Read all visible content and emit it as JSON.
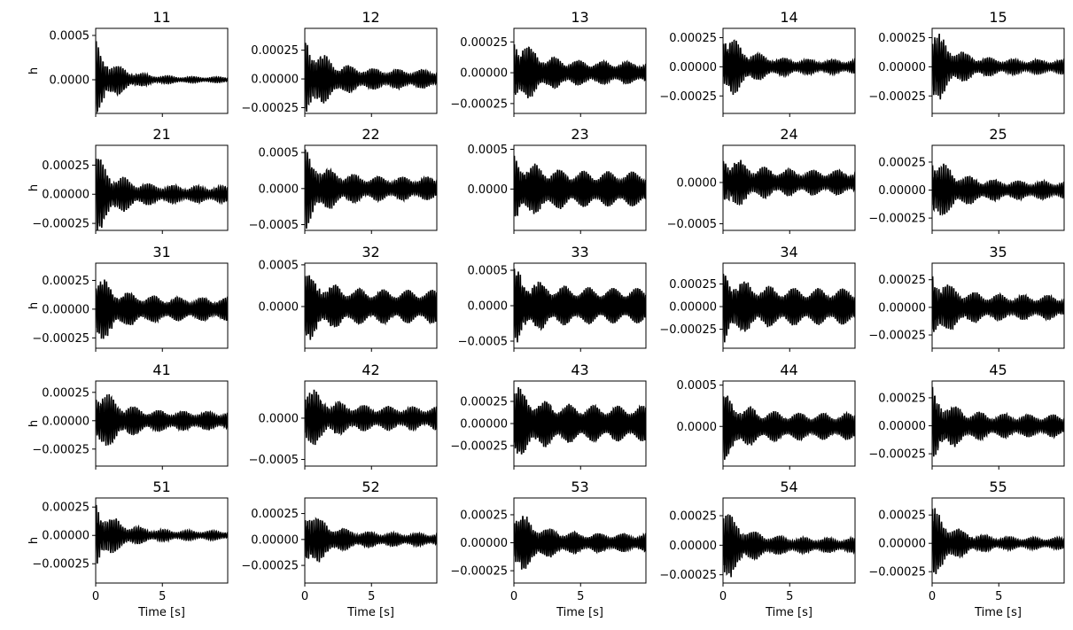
{
  "figure": {
    "background": "#ffffff",
    "line_color": "#000000",
    "x_label": "Time [s]",
    "y_label": "h"
  },
  "chart_data": [
    {
      "title": "11",
      "type": "line",
      "xlabel": "",
      "ylabel": "h",
      "xlim": [
        0,
        9.9
      ],
      "ylim": [
        -0.00038,
        0.00058
      ],
      "yticks": [
        {
          "v": 0.0005,
          "label": "0.0005"
        },
        {
          "v": 0.0,
          "label": "0.0000"
        }
      ],
      "xticks": [
        0,
        5
      ],
      "series": [
        {
          "color": "#000000",
          "amp0": 0.0004,
          "amp_end": 3e-05,
          "offset": 0.0,
          "freq": 6.0
        }
      ]
    },
    {
      "title": "12",
      "type": "line",
      "xlabel": "",
      "ylabel": "",
      "xlim": [
        0,
        9.9
      ],
      "ylim": [
        -0.0003,
        0.00044
      ],
      "yticks": [
        {
          "v": 0.00025,
          "label": "0.00025"
        },
        {
          "v": 0.0,
          "label": "0.00000"
        },
        {
          "v": -0.00025,
          "label": "−0.00025"
        }
      ],
      "xticks": [
        0,
        5
      ],
      "series": [
        {
          "color": "#000000",
          "amp0": 0.00038,
          "amp_end": 8e-05,
          "offset": 0.0,
          "freq": 6.2
        }
      ]
    },
    {
      "title": "13",
      "type": "line",
      "xlabel": "",
      "ylabel": "",
      "xlim": [
        0,
        9.9
      ],
      "ylim": [
        -0.00033,
        0.00036
      ],
      "yticks": [
        {
          "v": 0.00025,
          "label": "0.00025"
        },
        {
          "v": 0.0,
          "label": "0.00000"
        },
        {
          "v": -0.00025,
          "label": "−0.00025"
        }
      ],
      "xticks": [
        0,
        5
      ],
      "series": [
        {
          "color": "#000000",
          "amp0": 0.00032,
          "amp_end": 9e-05,
          "offset": 0.0,
          "freq": 6.4
        }
      ]
    },
    {
      "title": "14",
      "type": "line",
      "xlabel": "",
      "ylabel": "",
      "xlim": [
        0,
        9.9
      ],
      "ylim": [
        -0.0004,
        0.00033
      ],
      "yticks": [
        {
          "v": 0.00025,
          "label": "0.00025"
        },
        {
          "v": 0.0,
          "label": "0.00000"
        },
        {
          "v": -0.00025,
          "label": "−0.00025"
        }
      ],
      "xticks": [
        0,
        5
      ],
      "series": [
        {
          "color": "#000000",
          "amp0": 0.00034,
          "amp_end": 6e-05,
          "offset": 0.0,
          "freq": 6.3
        }
      ]
    },
    {
      "title": "15",
      "type": "line",
      "xlabel": "",
      "ylabel": "",
      "xlim": [
        0,
        9.9
      ],
      "ylim": [
        -0.0004,
        0.00033
      ],
      "yticks": [
        {
          "v": 0.00025,
          "label": "0.00025"
        },
        {
          "v": 0.0,
          "label": "0.00000"
        },
        {
          "v": -0.00025,
          "label": "−0.00025"
        }
      ],
      "xticks": [
        0,
        5
      ],
      "series": [
        {
          "color": "#000000",
          "amp0": 0.00034,
          "amp_end": 6e-05,
          "offset": 0.0,
          "freq": 6.1
        }
      ]
    },
    {
      "title": "21",
      "type": "line",
      "xlabel": "",
      "ylabel": "h",
      "xlim": [
        0,
        9.9
      ],
      "ylim": [
        -0.00031,
        0.00042
      ],
      "yticks": [
        {
          "v": 0.00025,
          "label": "0.00025"
        },
        {
          "v": 0.0,
          "label": "0.00000"
        },
        {
          "v": -0.00025,
          "label": "−0.00025"
        }
      ],
      "xticks": [
        0,
        5
      ],
      "series": [
        {
          "color": "#000000",
          "amp0": 0.00034,
          "amp_end": 7e-05,
          "offset": 0.0,
          "freq": 6.0
        }
      ]
    },
    {
      "title": "22",
      "type": "line",
      "xlabel": "",
      "ylabel": "",
      "xlim": [
        0,
        9.9
      ],
      "ylim": [
        -0.00058,
        0.0006
      ],
      "yticks": [
        {
          "v": 0.0005,
          "label": "0.0005"
        },
        {
          "v": 0.0,
          "label": "0.0000"
        },
        {
          "v": -0.0005,
          "label": "−0.0005"
        }
      ],
      "xticks": [
        0,
        5
      ],
      "series": [
        {
          "color": "#000000",
          "amp0": 0.00052,
          "amp_end": 0.00016,
          "offset": 0.0,
          "freq": 6.3
        }
      ]
    },
    {
      "title": "23",
      "type": "line",
      "xlabel": "",
      "ylabel": "",
      "xlim": [
        0,
        9.9
      ],
      "ylim": [
        -0.00052,
        0.00055
      ],
      "yticks": [
        {
          "v": 0.0005,
          "label": "0.0005"
        },
        {
          "v": 0.0,
          "label": "0.0000"
        }
      ],
      "xticks": [
        0,
        5
      ],
      "series": [
        {
          "color": "#000000",
          "amp0": 0.00042,
          "amp_end": 0.00022,
          "offset": 0.0,
          "freq": 6.5
        }
      ]
    },
    {
      "title": "24",
      "type": "line",
      "xlabel": "",
      "ylabel": "",
      "xlim": [
        0,
        9.9
      ],
      "ylim": [
        -0.00058,
        0.00045
      ],
      "yticks": [
        {
          "v": 0.0,
          "label": "0.0000"
        },
        {
          "v": -0.0005,
          "label": "−0.0005"
        }
      ],
      "xticks": [
        0,
        5
      ],
      "series": [
        {
          "color": "#000000",
          "amp0": 0.0004,
          "amp_end": 0.00015,
          "offset": 0.0,
          "freq": 6.2
        }
      ]
    },
    {
      "title": "25",
      "type": "line",
      "xlabel": "",
      "ylabel": "",
      "xlim": [
        0,
        9.9
      ],
      "ylim": [
        -0.00036,
        0.0004
      ],
      "yticks": [
        {
          "v": 0.00025,
          "label": "0.00025"
        },
        {
          "v": 0.0,
          "label": "0.00000"
        },
        {
          "v": -0.00025,
          "label": "−0.00025"
        }
      ],
      "xticks": [
        0,
        5
      ],
      "series": [
        {
          "color": "#000000",
          "amp0": 0.00034,
          "amp_end": 8e-05,
          "offset": 0.0,
          "freq": 6.1
        }
      ]
    },
    {
      "title": "31",
      "type": "line",
      "xlabel": "",
      "ylabel": "h",
      "xlim": [
        0,
        9.9
      ],
      "ylim": [
        -0.00034,
        0.0004
      ],
      "yticks": [
        {
          "v": 0.00025,
          "label": "0.00025"
        },
        {
          "v": 0.0,
          "label": "0.00000"
        },
        {
          "v": -0.00025,
          "label": "−0.00025"
        }
      ],
      "xticks": [
        0,
        5
      ],
      "series": [
        {
          "color": "#000000",
          "amp0": 0.00032,
          "amp_end": 0.0001,
          "offset": 0.0,
          "freq": 6.4
        }
      ]
    },
    {
      "title": "32",
      "type": "line",
      "xlabel": "",
      "ylabel": "",
      "xlim": [
        0,
        9.9
      ],
      "ylim": [
        -0.0005,
        0.00052
      ],
      "yticks": [
        {
          "v": 0.0005,
          "label": "0.0005"
        },
        {
          "v": 0.0,
          "label": "0.0000"
        }
      ],
      "xticks": [
        0,
        5
      ],
      "series": [
        {
          "color": "#000000",
          "amp0": 0.0004,
          "amp_end": 0.0002,
          "offset": 0.0,
          "freq": 6.6
        }
      ]
    },
    {
      "title": "33",
      "type": "line",
      "xlabel": "",
      "ylabel": "",
      "xlim": [
        0,
        9.9
      ],
      "ylim": [
        -0.0006,
        0.0006
      ],
      "yticks": [
        {
          "v": 0.0005,
          "label": "0.0005"
        },
        {
          "v": 0.0,
          "label": "0.0000"
        },
        {
          "v": -0.0005,
          "label": "−0.0005"
        }
      ],
      "xticks": [
        0,
        5
      ],
      "series": [
        {
          "color": "#000000",
          "amp0": 0.0005,
          "amp_end": 0.00025,
          "offset": 0.0,
          "freq": 6.7
        }
      ]
    },
    {
      "title": "34",
      "type": "line",
      "xlabel": "",
      "ylabel": "",
      "xlim": [
        0,
        9.9
      ],
      "ylim": [
        -0.00046,
        0.00048
      ],
      "yticks": [
        {
          "v": 0.00025,
          "label": "0.00025"
        },
        {
          "v": 0.0,
          "label": "0.00000"
        },
        {
          "v": -0.00025,
          "label": "−0.00025"
        }
      ],
      "xticks": [
        0,
        5
      ],
      "series": [
        {
          "color": "#000000",
          "amp0": 0.0004,
          "amp_end": 0.0002,
          "offset": 0.0,
          "freq": 6.5
        }
      ]
    },
    {
      "title": "35",
      "type": "line",
      "xlabel": "",
      "ylabel": "",
      "xlim": [
        0,
        9.9
      ],
      "ylim": [
        -0.00037,
        0.0004
      ],
      "yticks": [
        {
          "v": 0.00025,
          "label": "0.00025"
        },
        {
          "v": 0.0,
          "label": "0.00000"
        },
        {
          "v": -0.00025,
          "label": "−0.00025"
        }
      ],
      "xticks": [
        0,
        5
      ],
      "series": [
        {
          "color": "#000000",
          "amp0": 0.00032,
          "amp_end": 0.00011,
          "offset": 0.0,
          "freq": 6.3
        }
      ]
    },
    {
      "title": "41",
      "type": "line",
      "xlabel": "",
      "ylabel": "h",
      "xlim": [
        0,
        9.9
      ],
      "ylim": [
        -0.0004,
        0.00035
      ],
      "yticks": [
        {
          "v": 0.00025,
          "label": "0.00025"
        },
        {
          "v": 0.0,
          "label": "0.00000"
        },
        {
          "v": -0.00025,
          "label": "−0.00025"
        }
      ],
      "xticks": [
        0,
        5
      ],
      "series": [
        {
          "color": "#000000",
          "amp0": 0.00034,
          "amp_end": 8e-05,
          "offset": 0.0,
          "freq": 6.2
        }
      ]
    },
    {
      "title": "42",
      "type": "line",
      "xlabel": "",
      "ylabel": "",
      "xlim": [
        0,
        9.9
      ],
      "ylim": [
        -0.00058,
        0.00045
      ],
      "yticks": [
        {
          "v": 0.0,
          "label": "0.0000"
        },
        {
          "v": -0.0005,
          "label": "−0.0005"
        }
      ],
      "xticks": [
        0,
        5
      ],
      "series": [
        {
          "color": "#000000",
          "amp0": 0.00042,
          "amp_end": 0.00014,
          "offset": 0.0,
          "freq": 6.1
        }
      ]
    },
    {
      "title": "43",
      "type": "line",
      "xlabel": "",
      "ylabel": "",
      "xlim": [
        0,
        9.9
      ],
      "ylim": [
        -0.00048,
        0.00048
      ],
      "yticks": [
        {
          "v": 0.00025,
          "label": "0.00025"
        },
        {
          "v": 0.0,
          "label": "0.00000"
        },
        {
          "v": -0.00025,
          "label": "−0.00025"
        }
      ],
      "xticks": [
        0,
        5
      ],
      "series": [
        {
          "color": "#000000",
          "amp0": 0.00042,
          "amp_end": 0.0002,
          "offset": 0.0,
          "freq": 6.6
        }
      ]
    },
    {
      "title": "44",
      "type": "line",
      "xlabel": "",
      "ylabel": "",
      "xlim": [
        0,
        9.9
      ],
      "ylim": [
        -0.00048,
        0.00055
      ],
      "yticks": [
        {
          "v": 0.0005,
          "label": "0.0005"
        },
        {
          "v": 0.0,
          "label": "0.0000"
        }
      ],
      "xticks": [
        0,
        5
      ],
      "series": [
        {
          "color": "#000000",
          "amp0": 0.0004,
          "amp_end": 0.00016,
          "offset": 0.0,
          "freq": 6.4
        }
      ]
    },
    {
      "title": "45",
      "type": "line",
      "xlabel": "",
      "ylabel": "",
      "xlim": [
        0,
        9.9
      ],
      "ylim": [
        -0.00036,
        0.0004
      ],
      "yticks": [
        {
          "v": 0.00025,
          "label": "0.00025"
        },
        {
          "v": 0.0,
          "label": "0.00000"
        },
        {
          "v": -0.00025,
          "label": "−0.00025"
        }
      ],
      "xticks": [
        0,
        5
      ],
      "series": [
        {
          "color": "#000000",
          "amp0": 0.00032,
          "amp_end": 0.0001,
          "offset": 0.0,
          "freq": 6.3
        }
      ]
    },
    {
      "title": "51",
      "type": "line",
      "xlabel": "Time [s]",
      "ylabel": "h",
      "xlim": [
        0,
        9.9
      ],
      "ylim": [
        -0.00042,
        0.00033
      ],
      "yticks": [
        {
          "v": 0.00025,
          "label": "0.00025"
        },
        {
          "v": 0.0,
          "label": "0.00000"
        },
        {
          "v": -0.00025,
          "label": "−0.00025"
        }
      ],
      "xticks": [
        0,
        5
      ],
      "series": [
        {
          "color": "#000000",
          "amp0": 0.0003,
          "amp_end": 4e-05,
          "offset": 0.0,
          "freq": 6.0
        }
      ]
    },
    {
      "title": "52",
      "type": "line",
      "xlabel": "Time [s]",
      "ylabel": "",
      "xlim": [
        0,
        9.9
      ],
      "ylim": [
        -0.00042,
        0.0004
      ],
      "yticks": [
        {
          "v": 0.00025,
          "label": "0.00025"
        },
        {
          "v": 0.0,
          "label": "0.00000"
        },
        {
          "v": -0.00025,
          "label": "−0.00025"
        }
      ],
      "xticks": [
        0,
        5
      ],
      "series": [
        {
          "color": "#000000",
          "amp0": 0.00034,
          "amp_end": 6e-05,
          "offset": 0.0,
          "freq": 6.2
        }
      ]
    },
    {
      "title": "53",
      "type": "line",
      "xlabel": "Time [s]",
      "ylabel": "",
      "xlim": [
        0,
        9.9
      ],
      "ylim": [
        -0.00036,
        0.0004
      ],
      "yticks": [
        {
          "v": 0.00025,
          "label": "0.00025"
        },
        {
          "v": 0.0,
          "label": "0.00000"
        },
        {
          "v": -0.00025,
          "label": "−0.00025"
        }
      ],
      "xticks": [
        0,
        5
      ],
      "series": [
        {
          "color": "#000000",
          "amp0": 0.00032,
          "amp_end": 8e-05,
          "offset": 0.0,
          "freq": 6.4
        }
      ]
    },
    {
      "title": "54",
      "type": "line",
      "xlabel": "Time [s]",
      "ylabel": "",
      "xlim": [
        0,
        9.9
      ],
      "ylim": [
        -0.00032,
        0.0004
      ],
      "yticks": [
        {
          "v": 0.00025,
          "label": "0.00025"
        },
        {
          "v": 0.0,
          "label": "0.00000"
        },
        {
          "v": -0.00025,
          "label": "−0.00025"
        }
      ],
      "xticks": [
        0,
        5
      ],
      "series": [
        {
          "color": "#000000",
          "amp0": 0.00032,
          "amp_end": 6e-05,
          "offset": 0.0,
          "freq": 6.2
        }
      ]
    },
    {
      "title": "55",
      "type": "line",
      "xlabel": "Time [s]",
      "ylabel": "",
      "xlim": [
        0,
        9.9
      ],
      "ylim": [
        -0.00035,
        0.0004
      ],
      "yticks": [
        {
          "v": 0.00025,
          "label": "0.00025"
        },
        {
          "v": 0.0,
          "label": "0.00000"
        },
        {
          "v": -0.00025,
          "label": "−0.00025"
        }
      ],
      "xticks": [
        0,
        5
      ],
      "series": [
        {
          "color": "#000000",
          "amp0": 0.00032,
          "amp_end": 5e-05,
          "offset": 0.0,
          "freq": 6.1
        }
      ]
    }
  ]
}
